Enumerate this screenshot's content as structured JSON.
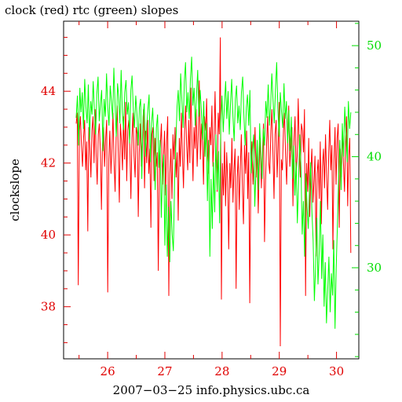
{
  "chart_data": {
    "type": "line",
    "title": "clock (red) rtc (green) slopes",
    "xlabel": "2007−03−25  info.physics.ubc.ca",
    "ylabel": "clockslope",
    "grid": false,
    "xlim": [
      25.23,
      30.39
    ],
    "x_ticks": [
      26,
      27,
      28,
      29,
      30
    ],
    "x_tick_labels": [
      "26",
      "27",
      "28",
      "29",
      "30"
    ],
    "left_axis": {
      "ylim": [
        36.55,
        45.95
      ],
      "ticks": [
        38,
        40,
        42,
        44
      ],
      "tick_labels": [
        "38",
        "40",
        "42",
        "44"
      ],
      "color": "#e00000"
    },
    "right_axis": {
      "ylim": [
        21.8,
        52.2
      ],
      "ticks": [
        30,
        40,
        50
      ],
      "tick_labels": [
        "30",
        "40",
        "50"
      ],
      "color": "#00dd00"
    },
    "series": [
      {
        "color": "#ff0000",
        "axis": "left",
        "x_start": 25.45,
        "x_end": 30.25,
        "values": [
          43.1,
          43.4,
          38.6,
          42.9,
          43.3,
          42.5,
          41.9,
          42.7,
          43.2,
          41.8,
          42.6,
          40.1,
          43.0,
          42.4,
          41.6,
          42.9,
          43.3,
          42.0,
          43.5,
          42.2,
          41.4,
          42.8,
          43.1,
          42.3,
          40.7,
          42.5,
          43.0,
          41.9,
          42.7,
          43.2,
          38.4,
          42.1,
          42.9,
          41.7,
          42.4,
          43.4,
          42.0,
          41.2,
          42.8,
          43.6,
          42.3,
          40.9,
          43.1,
          42.6,
          41.8,
          43.3,
          42.1,
          43.7,
          41.5,
          42.9,
          43.2,
          42.4,
          41.0,
          42.7,
          43.4,
          42.2,
          41.6,
          43.0,
          42.8,
          40.5,
          42.3,
          43.1,
          41.9,
          42.6,
          43.5,
          41.3,
          42.9,
          42.0,
          43.2,
          41.7,
          42.4,
          40.2,
          42.8,
          43.0,
          41.5,
          42.7,
          41.9,
          42.3,
          39.0,
          41.8,
          42.5,
          43.1,
          41.4,
          42.2,
          42.9,
          41.1,
          42.6,
          43.3,
          38.3,
          41.7,
          42.4,
          41.0,
          42.8,
          42.1,
          43.0,
          41.6,
          42.3,
          40.4,
          42.7,
          41.9,
          43.4,
          42.2,
          41.3,
          42.9,
          43.6,
          42.5,
          41.8,
          43.2,
          42.0,
          44.1,
          42.7,
          41.5,
          43.0,
          42.4,
          43.5,
          41.9,
          42.8,
          44.3,
          42.1,
          43.1,
          42.6,
          41.4,
          43.3,
          42.9,
          43.8,
          42.2,
          41.7,
          43.0,
          42.5,
          43.6,
          41.9,
          42.7,
          44.0,
          42.3,
          41.2,
          43.4,
          42.8,
          45.5,
          38.2,
          42.0,
          41.1,
          42.6,
          40.8,
          42.3,
          41.5,
          39.6,
          42.0,
          41.3,
          42.7,
          40.9,
          41.8,
          42.4,
          38.5,
          41.6,
          42.2,
          40.7,
          41.9,
          42.8,
          41.2,
          40.3,
          42.5,
          41.7,
          42.9,
          41.0,
          42.3,
          38.1,
          41.8,
          42.6,
          41.4,
          42.1,
          43.0,
          41.6,
          42.4,
          40.6,
          41.9,
          42.7,
          41.3,
          42.2,
          43.1,
          39.8,
          41.5,
          42.6,
          43.3,
          42.0,
          41.7,
          42.9,
          43.5,
          42.3,
          41.0,
          42.8,
          43.2,
          41.6,
          42.5,
          43.7,
          36.9,
          42.1,
          41.8,
          42.9,
          43.4,
          42.2,
          41.4,
          42.7,
          43.6,
          41.9,
          42.4,
          43.0,
          40.8,
          42.6,
          43.3,
          41.7,
          42.2,
          43.8,
          42.5,
          41.6,
          43.1,
          42.9,
          42.3,
          43.5,
          38.3,
          42.0,
          41.2,
          42.7,
          40.5,
          41.8,
          42.4,
          40.9,
          41.5,
          42.2,
          39.4,
          41.7,
          42.1,
          41.0,
          42.6,
          40.3,
          41.9,
          42.4,
          41.3,
          42.8,
          41.6,
          40.7,
          42.3,
          43.2,
          41.8,
          42.5,
          39.6,
          42.1,
          43.0,
          41.4,
          42.7,
          43.1,
          40.2,
          42.4,
          41.6,
          42.9,
          42.0,
          41.2,
          42.6,
          43.3,
          40.8,
          42.2,
          42.7,
          39.5
        ]
      },
      {
        "color": "#00ff00",
        "axis": "right",
        "x_start": 25.45,
        "x_end": 30.25,
        "values": [
          43.5,
          45.5,
          41.0,
          46.2,
          44.0,
          45.8,
          42.5,
          47.0,
          44.5,
          43.0,
          46.5,
          41.5,
          45.0,
          43.8,
          46.8,
          44.2,
          42.0,
          45.6,
          47.2,
          43.2,
          44.8,
          46.0,
          40.5,
          45.2,
          43.6,
          47.5,
          44.4,
          42.8,
          46.4,
          45.0,
          43.4,
          48.0,
          44.6,
          41.8,
          46.6,
          45.4,
          43.0,
          47.8,
          44.0,
          42.4,
          45.8,
          46.9,
          43.8,
          44.9,
          41.2,
          46.0,
          47.3,
          44.2,
          42.6,
          45.5,
          43.9,
          41.0,
          44.4,
          45.2,
          38.0,
          43.6,
          44.8,
          40.0,
          42.8,
          44.2,
          45.6,
          39.5,
          43.0,
          44.4,
          41.4,
          37.0,
          42.6,
          43.8,
          39.0,
          41.5,
          34.5,
          38.5,
          40.2,
          32.0,
          37.5,
          31.0,
          35.5,
          30.5,
          36.0,
          33.0,
          31.5,
          38.0,
          41.0,
          44.5,
          46.0,
          43.2,
          47.5,
          45.0,
          42.6,
          46.8,
          48.5,
          44.0,
          45.8,
          43.4,
          47.0,
          49.0,
          44.6,
          46.2,
          42.8,
          45.4,
          47.8,
          43.6,
          46.0,
          44.2,
          41.5,
          45.0,
          40.0,
          43.0,
          36.0,
          41.5,
          31.0,
          38.0,
          33.5,
          39.5,
          35.0,
          42.0,
          37.0,
          40.5,
          34.0,
          43.0,
          45.5,
          42.2,
          44.6,
          46.8,
          43.4,
          45.9,
          42.0,
          44.8,
          47.0,
          43.6,
          41.4,
          45.2,
          46.4,
          43.0,
          44.6,
          42.4,
          45.8,
          47.2,
          43.8,
          41.0,
          44.4,
          45.6,
          42.8,
          46.0,
          38.5,
          40.5,
          42.0,
          35.5,
          39.0,
          41.5,
          37.0,
          43.0,
          40.0,
          38.0,
          42.5,
          41.0,
          45.0,
          43.5,
          46.5,
          42.8,
          44.6,
          47.5,
          45.2,
          43.0,
          46.0,
          48.5,
          44.4,
          41.8,
          45.8,
          44.0,
          42.6,
          46.6,
          43.4,
          45.0,
          41.2,
          44.2,
          40.5,
          43.6,
          38.0,
          41.0,
          36.5,
          39.5,
          34.0,
          37.5,
          42.0,
          39.0,
          33.0,
          36.0,
          31.0,
          38.5,
          35.5,
          33.5,
          37.0,
          39.5,
          35.0,
          32.5,
          27.0,
          30.0,
          34.5,
          28.5,
          31.5,
          36.0,
          29.0,
          33.0,
          26.5,
          30.5,
          25.0,
          28.0,
          31.0,
          26.0,
          29.5,
          27.5,
          32.5,
          24.5,
          30.0,
          34.0,
          38.0,
          41.5,
          37.0,
          43.0,
          40.0,
          44.5,
          42.0,
          39.5,
          45.0,
          42.5,
          44.0
        ]
      }
    ]
  }
}
